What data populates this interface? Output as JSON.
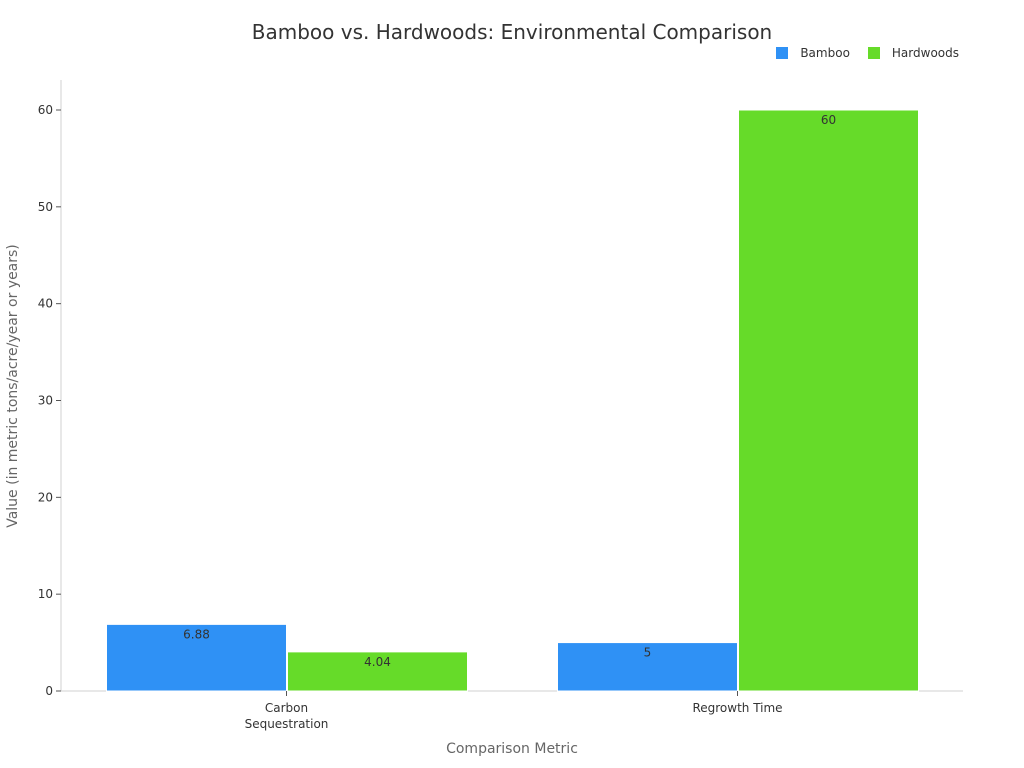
{
  "chart_data": {
    "type": "bar",
    "title": "Bamboo vs. Hardwoods: Environmental Comparison",
    "xlabel": "Comparison Metric",
    "ylabel": "Value (in metric tons/acre/year or years)",
    "categories": [
      "Carbon Sequestration",
      "Regrowth Time"
    ],
    "category_lines": [
      [
        "Carbon",
        "Sequestration"
      ],
      [
        "Regrowth Time"
      ]
    ],
    "series": [
      {
        "name": "Bamboo",
        "values": [
          6.88,
          5
        ],
        "labels": [
          "6.88",
          "5"
        ],
        "color": "#2f91f5"
      },
      {
        "name": "Hardwoods",
        "values": [
          4.04,
          60
        ],
        "labels": [
          "4.04",
          "60"
        ],
        "color": "#66db29"
      }
    ],
    "ylim": [
      0,
      63
    ],
    "yticks": [
      0,
      10,
      20,
      30,
      40,
      50,
      60
    ],
    "grid": false,
    "legend_position": "top-right"
  }
}
